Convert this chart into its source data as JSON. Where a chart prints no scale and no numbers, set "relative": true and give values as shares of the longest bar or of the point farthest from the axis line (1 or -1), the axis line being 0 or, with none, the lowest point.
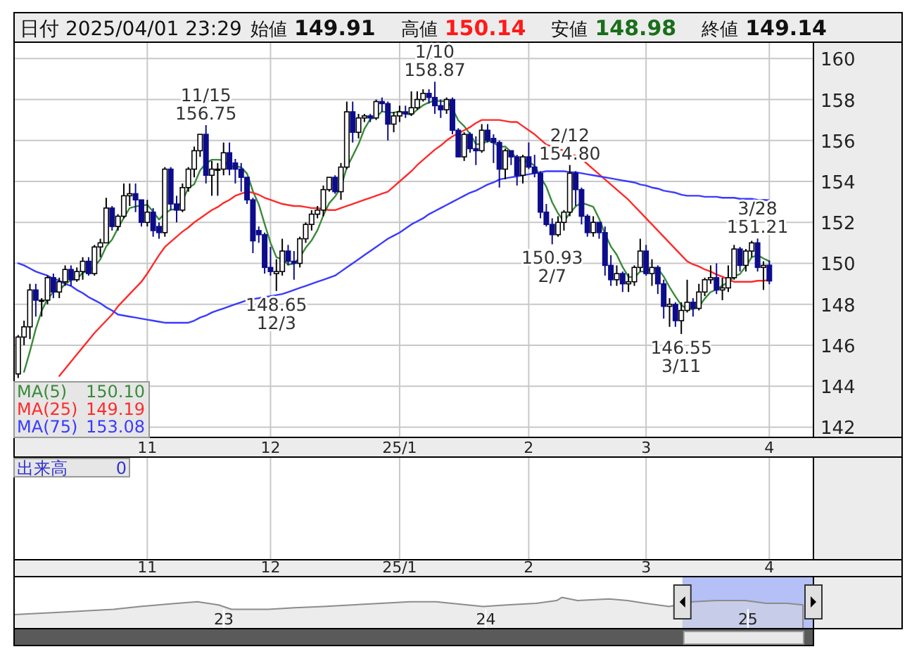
{
  "chart_data": [
    {
      "type": "candlestick",
      "title": "日付 2025/04/01 23:29",
      "categories": [
        null,
        null,
        null,
        null,
        null,
        null,
        null,
        null,
        null,
        null,
        null,
        null,
        null,
        null,
        null,
        null,
        null,
        null,
        null,
        null,
        null,
        null,
        "11",
        null,
        null,
        null,
        null,
        null,
        null,
        null,
        null,
        null,
        null,
        null,
        null,
        null,
        null,
        null,
        null,
        null,
        null,
        null,
        null,
        "12",
        null,
        null,
        null,
        null,
        null,
        null,
        null,
        null,
        null,
        null,
        null,
        null,
        null,
        null,
        null,
        null,
        null,
        null,
        null,
        null,
        null,
        "25/1",
        null,
        null,
        null,
        null,
        null,
        null,
        null,
        null,
        null,
        null,
        null,
        null,
        null,
        null,
        null,
        null,
        null,
        null,
        null,
        null,
        null,
        "2",
        null,
        null,
        null,
        null,
        null,
        null,
        null,
        null,
        null,
        null,
        null,
        null,
        null,
        null,
        null,
        null,
        null,
        null,
        null,
        "3",
        null,
        null,
        null,
        null,
        null,
        null,
        null,
        null,
        null,
        null,
        null,
        null,
        null,
        null,
        null,
        null,
        null,
        null,
        null,
        null,
        "4"
      ],
      "ohlc": [
        [
          144.6,
          146.5,
          144.4,
          146.4
        ],
        [
          146.4,
          147.2,
          146.0,
          146.9
        ],
        [
          146.9,
          149.0,
          146.3,
          148.7
        ],
        [
          148.7,
          149.0,
          147.4,
          148.2
        ],
        [
          148.2,
          148.3,
          147.4,
          148.2
        ],
        [
          148.2,
          149.4,
          148.0,
          149.3
        ],
        [
          149.3,
          149.5,
          148.3,
          148.6
        ],
        [
          148.6,
          149.3,
          148.3,
          149.1
        ],
        [
          149.1,
          149.9,
          148.9,
          149.7
        ],
        [
          149.7,
          149.9,
          148.9,
          149.2
        ],
        [
          149.2,
          149.8,
          149.1,
          149.6
        ],
        [
          149.6,
          150.3,
          149.2,
          150.1
        ],
        [
          150.1,
          150.3,
          149.4,
          149.5
        ],
        [
          149.5,
          150.9,
          149.4,
          150.8
        ],
        [
          150.8,
          151.2,
          150.3,
          151.0
        ],
        [
          151.0,
          153.2,
          151.0,
          152.7
        ],
        [
          152.7,
          152.8,
          151.6,
          151.8
        ],
        [
          151.8,
          152.4,
          151.6,
          152.3
        ],
        [
          152.3,
          153.9,
          152.2,
          153.3
        ],
        [
          153.3,
          153.9,
          152.8,
          153.4
        ],
        [
          153.4,
          153.9,
          152.5,
          153.1
        ],
        [
          153.1,
          153.1,
          151.8,
          152.0
        ],
        [
          152.0,
          153.1,
          151.8,
          152.5
        ],
        [
          152.5,
          152.7,
          151.3,
          151.6
        ],
        [
          151.8,
          152.0,
          151.2,
          151.5
        ],
        [
          151.5,
          154.7,
          151.3,
          154.6
        ],
        [
          154.6,
          154.7,
          152.6,
          152.9
        ],
        [
          152.9,
          153.3,
          152.0,
          152.6
        ],
        [
          152.6,
          153.9,
          152.5,
          153.7
        ],
        [
          153.7,
          154.7,
          153.5,
          154.6
        ],
        [
          154.6,
          155.7,
          154.2,
          155.5
        ],
        [
          155.5,
          156.3,
          155.2,
          156.3
        ],
        [
          156.3,
          156.75,
          153.9,
          154.3
        ],
        [
          154.3,
          155.0,
          153.3,
          154.6
        ],
        [
          154.6,
          154.9,
          153.3,
          154.6
        ],
        [
          154.6,
          155.9,
          154.3,
          155.4
        ],
        [
          155.4,
          155.9,
          154.3,
          154.6
        ],
        [
          154.9,
          155.1,
          153.9,
          154.6
        ],
        [
          154.6,
          154.9,
          153.5,
          154.2
        ],
        [
          154.2,
          154.2,
          152.9,
          153.1
        ],
        [
          153.1,
          153.2,
          150.5,
          151.1
        ],
        [
          151.6,
          151.8,
          151.0,
          151.4
        ],
        [
          151.4,
          151.5,
          149.5,
          149.8
        ],
        [
          149.8,
          150.8,
          149.4,
          149.6
        ],
        [
          149.5,
          150.2,
          148.65,
          149.6
        ],
        [
          149.6,
          151.2,
          149.4,
          150.6
        ],
        [
          150.6,
          150.9,
          149.9,
          150.1
        ],
        [
          150.1,
          150.6,
          149.2,
          150.0
        ],
        [
          150.0,
          151.3,
          149.8,
          151.2
        ],
        [
          151.2,
          152.0,
          151.0,
          151.9
        ],
        [
          151.9,
          152.6,
          151.6,
          152.4
        ],
        [
          152.4,
          152.8,
          152.2,
          152.6
        ],
        [
          152.6,
          153.8,
          152.3,
          153.6
        ],
        [
          153.6,
          154.2,
          153.5,
          154.2
        ],
        [
          154.2,
          154.3,
          153.4,
          153.5
        ],
        [
          153.5,
          154.9,
          153.1,
          154.7
        ],
        [
          154.7,
          157.9,
          154.6,
          157.4
        ],
        [
          157.4,
          157.9,
          155.9,
          156.4
        ],
        [
          156.4,
          157.3,
          156.1,
          157.1
        ],
        [
          157.1,
          157.3,
          156.9,
          157.2
        ],
        [
          157.2,
          157.3,
          156.9,
          157.1
        ],
        [
          157.1,
          158.0,
          157.0,
          157.9
        ],
        [
          157.9,
          158.1,
          157.4,
          157.8
        ],
        [
          157.8,
          157.9,
          156.0,
          156.8
        ],
        [
          156.8,
          157.4,
          156.4,
          157.2
        ],
        [
          157.2,
          157.7,
          156.9,
          157.4
        ],
        [
          157.4,
          157.7,
          157.1,
          157.3
        ],
        [
          157.3,
          158.4,
          157.2,
          157.6
        ],
        [
          157.6,
          158.4,
          157.5,
          158.0
        ],
        [
          158.0,
          158.5,
          157.9,
          158.3
        ],
        [
          158.3,
          158.5,
          157.8,
          158.1
        ],
        [
          158.1,
          158.87,
          157.3,
          157.7
        ],
        [
          157.7,
          158.0,
          157.1,
          157.5
        ],
        [
          157.5,
          158.1,
          157.3,
          158.0
        ],
        [
          158.0,
          158.1,
          156.3,
          156.5
        ],
        [
          156.5,
          156.6,
          155.2,
          155.2
        ],
        [
          155.2,
          156.4,
          155.0,
          156.3
        ],
        [
          156.3,
          156.4,
          155.4,
          155.6
        ],
        [
          155.6,
          156.2,
          154.8,
          155.5
        ],
        [
          155.5,
          156.8,
          155.4,
          156.5
        ],
        [
          156.5,
          156.8,
          155.9,
          156.0
        ],
        [
          156.1,
          156.3,
          154.9,
          155.9
        ],
        [
          155.9,
          156.0,
          153.7,
          154.6
        ],
        [
          154.6,
          155.6,
          154.1,
          155.5
        ],
        [
          155.5,
          155.5,
          154.8,
          155.2
        ],
        [
          155.2,
          155.3,
          153.8,
          154.3
        ],
        [
          154.3,
          155.3,
          153.9,
          155.2
        ],
        [
          155.2,
          155.9,
          154.6,
          154.7
        ],
        [
          154.7,
          155.3,
          154.2,
          154.4
        ],
        [
          154.4,
          154.5,
          152.2,
          152.5
        ],
        [
          152.5,
          152.9,
          151.8,
          151.9
        ],
        [
          151.9,
          152.2,
          150.93,
          151.4
        ],
        [
          151.4,
          152.3,
          151.3,
          152.0
        ],
        [
          152.0,
          152.6,
          151.6,
          152.5
        ],
        [
          152.5,
          154.8,
          152.3,
          154.4
        ],
        [
          154.4,
          154.5,
          152.8,
          153.6
        ],
        [
          153.6,
          153.7,
          151.9,
          152.3
        ],
        [
          152.3,
          152.4,
          151.3,
          151.5
        ],
        [
          151.5,
          152.3,
          151.3,
          152.0
        ],
        [
          152.0,
          152.0,
          151.2,
          151.5
        ],
        [
          151.5,
          151.8,
          149.4,
          149.9
        ],
        [
          149.9,
          150.4,
          148.9,
          149.2
        ],
        [
          149.2,
          149.9,
          148.9,
          149.5
        ],
        [
          149.5,
          149.6,
          148.6,
          149.0
        ],
        [
          149.0,
          149.5,
          148.6,
          149.1
        ],
        [
          149.1,
          149.9,
          148.9,
          149.8
        ],
        [
          149.8,
          151.2,
          149.6,
          150.6
        ],
        [
          150.6,
          150.9,
          149.4,
          149.5
        ],
        [
          149.5,
          150.2,
          148.9,
          149.8
        ],
        [
          149.8,
          149.9,
          148.5,
          149.0
        ],
        [
          149.0,
          149.2,
          147.3,
          147.9
        ],
        [
          147.9,
          148.3,
          146.9,
          148.0
        ],
        [
          148.0,
          148.1,
          146.9,
          147.2
        ],
        [
          147.2,
          148.1,
          146.55,
          147.7
        ],
        [
          147.7,
          149.2,
          147.6,
          148.1
        ],
        [
          148.1,
          148.3,
          147.4,
          147.8
        ],
        [
          147.8,
          149.0,
          147.7,
          148.6
        ],
        [
          148.6,
          149.3,
          148.4,
          149.2
        ],
        [
          149.2,
          149.9,
          149.0,
          149.3
        ],
        [
          149.3,
          150.0,
          148.5,
          148.7
        ],
        [
          148.7,
          149.3,
          148.2,
          148.8
        ],
        [
          148.8,
          149.9,
          148.6,
          149.3
        ],
        [
          149.3,
          150.9,
          149.2,
          150.7
        ],
        [
          150.7,
          150.8,
          149.6,
          149.9
        ],
        [
          149.9,
          150.7,
          149.6,
          150.6
        ],
        [
          150.6,
          151.1,
          150.3,
          151.0
        ],
        [
          151.0,
          151.21,
          149.6,
          149.8
        ],
        [
          149.8,
          150.1,
          148.7,
          149.9
        ],
        [
          149.91,
          150.14,
          148.98,
          149.14
        ]
      ],
      "series": [
        {
          "type": "line",
          "name": "MA(5)",
          "color": "#3a8a3a",
          "values": [
            null,
            144.7,
            145.7,
            146.8,
            147.68,
            148.26,
            148.6,
            148.68,
            148.98,
            149.18,
            149.24,
            149.54,
            149.62,
            149.84,
            150.2,
            150.82,
            151.16,
            151.72,
            152.22,
            152.7,
            152.78,
            152.82,
            152.86,
            152.52,
            152.14,
            152.44,
            152.62,
            152.64,
            153.06,
            153.68,
            153.86,
            154.54,
            154.88,
            155.06,
            155.06,
            155.04,
            154.7,
            154.76,
            154.68,
            154.38,
            153.52,
            152.88,
            151.92,
            151.0,
            150.3,
            150.2,
            149.94,
            149.98,
            150.3,
            150.76,
            151.12,
            151.62,
            152.34,
            152.94,
            153.26,
            153.72,
            154.68,
            155.24,
            155.82,
            156.56,
            157.04,
            157.14,
            157.42,
            157.36,
            157.36,
            157.42,
            157.3,
            157.26,
            157.5,
            157.72,
            157.86,
            157.94,
            157.92,
            157.92,
            157.56,
            156.98,
            156.7,
            156.32,
            155.82,
            155.82,
            155.98,
            155.9,
            155.7,
            155.7,
            155.44,
            155.1,
            154.96,
            154.98,
            154.76,
            154.22,
            153.74,
            152.98,
            152.44,
            152.06,
            152.44,
            152.78,
            152.96,
            152.86,
            152.76,
            152.18,
            151.44,
            150.82,
            150.42,
            149.82,
            149.34,
            149.32,
            149.6,
            149.6,
            149.76,
            149.74,
            149.36,
            148.84,
            148.38,
            147.96,
            147.78,
            147.76,
            147.88,
            148.28,
            148.6,
            148.72,
            148.92,
            149.06,
            149.36,
            149.48,
            149.86,
            150.3,
            150.4,
            150.24,
            150.1
          ]
        },
        {
          "type": "line",
          "name": "MA(25)",
          "color": "#ff2a2a",
          "values": [
            null,
            null,
            null,
            null,
            null,
            null,
            null,
            144.5,
            144.85,
            145.2,
            145.55,
            145.9,
            146.25,
            146.6,
            146.9,
            147.2,
            147.5,
            147.9,
            148.2,
            148.5,
            148.8,
            149.1,
            149.5,
            149.95,
            150.4,
            150.8,
            151.05,
            151.3,
            151.55,
            151.75,
            152.0,
            152.2,
            152.4,
            152.6,
            152.75,
            152.95,
            153.1,
            153.3,
            153.4,
            153.5,
            153.45,
            153.35,
            153.2,
            153.1,
            153.0,
            152.9,
            152.85,
            152.8,
            152.8,
            152.75,
            152.7,
            152.7,
            152.65,
            152.6,
            152.6,
            152.7,
            152.8,
            152.9,
            153.0,
            153.1,
            153.2,
            153.3,
            153.4,
            153.5,
            153.75,
            154.0,
            154.25,
            154.5,
            154.8,
            155.05,
            155.3,
            155.55,
            155.75,
            156.0,
            156.2,
            156.35,
            156.5,
            156.65,
            156.85,
            157.0,
            157.0,
            157.0,
            157.0,
            156.95,
            156.9,
            156.9,
            156.7,
            156.5,
            156.3,
            156.05,
            155.8,
            155.7,
            155.6,
            155.5,
            155.35,
            155.25,
            155.1,
            154.85,
            154.6,
            154.35,
            154.1,
            153.85,
            153.6,
            153.35,
            153.1,
            152.8,
            152.5,
            152.2,
            151.9,
            151.6,
            151.3,
            151.0,
            150.7,
            150.4,
            150.1,
            149.95,
            149.85,
            149.7,
            149.6,
            149.45,
            149.35,
            149.2,
            149.1,
            149.1,
            149.1,
            149.1,
            149.15,
            149.15,
            149.19
          ]
        },
        {
          "type": "line",
          "name": "MA(75)",
          "color": "#3a3aff",
          "values": [
            150.0,
            149.9,
            149.75,
            149.6,
            149.5,
            149.4,
            149.25,
            149.15,
            149.0,
            148.9,
            148.7,
            148.55,
            148.35,
            148.2,
            148.05,
            147.85,
            147.7,
            147.5,
            147.45,
            147.4,
            147.35,
            147.3,
            147.25,
            147.2,
            147.15,
            147.1,
            147.1,
            147.1,
            147.1,
            147.1,
            147.2,
            147.35,
            147.45,
            147.6,
            147.7,
            147.8,
            147.9,
            148.0,
            148.1,
            148.2,
            148.25,
            148.3,
            148.35,
            148.4,
            148.45,
            148.5,
            148.6,
            148.7,
            148.8,
            148.9,
            149.0,
            149.1,
            149.2,
            149.3,
            149.4,
            149.6,
            149.8,
            150.0,
            150.2,
            150.4,
            150.6,
            150.8,
            151.0,
            151.2,
            151.35,
            151.5,
            151.7,
            151.9,
            152.05,
            152.2,
            152.4,
            152.55,
            152.7,
            152.85,
            153.0,
            153.15,
            153.3,
            153.45,
            153.55,
            153.7,
            153.85,
            153.95,
            154.1,
            154.15,
            154.2,
            154.25,
            154.3,
            154.35,
            154.4,
            154.45,
            154.5,
            154.5,
            154.5,
            154.5,
            154.45,
            154.45,
            154.4,
            154.35,
            154.3,
            154.25,
            154.2,
            154.15,
            154.1,
            154.05,
            154.0,
            153.95,
            153.85,
            153.8,
            153.7,
            153.65,
            153.55,
            153.5,
            153.45,
            153.35,
            153.3,
            153.3,
            153.3,
            153.25,
            153.25,
            153.25,
            153.2,
            153.2,
            153.2,
            153.15,
            153.15,
            153.15,
            153.1,
            153.1,
            153.08
          ]
        }
      ],
      "ylim": [
        141.5,
        160.8
      ],
      "yticks": [
        142,
        144,
        146,
        148,
        150,
        152,
        154,
        156,
        158,
        160
      ],
      "grid": true,
      "legend": "bottom left",
      "annotations": [
        "始値",
        "149.91",
        "高値",
        "150.14",
        "安値",
        "148.98",
        "終値",
        "149.14",
        "150.10",
        "149.19",
        "153.08",
        {
          "text": "11/15",
          "y": 156.75
        },
        {
          "text": "156.75",
          "y": 156.75
        },
        {
          "text": "148.65",
          "y": 148.65
        },
        {
          "text": "12/3",
          "y": 148.65
        },
        {
          "text": "1/10",
          "y": 158.87
        },
        {
          "text": "158.87",
          "y": 158.87
        },
        {
          "text": "150.93",
          "y": 150.93
        },
        {
          "text": "2/7",
          "y": 150.93
        },
        {
          "text": "2/12",
          "y": 154.8
        },
        {
          "text": "154.80",
          "y": 154.8
        },
        {
          "text": "146.55",
          "y": 146.55
        },
        {
          "text": "3/11",
          "y": 146.55
        },
        {
          "text": "3/28",
          "y": 151.21
        },
        {
          "text": "151.21",
          "y": 151.21
        }
      ]
    },
    {
      "type": "other",
      "categories": [
        null,
        null,
        null,
        null,
        null,
        null,
        null,
        null,
        null,
        null,
        null,
        null,
        null,
        null,
        null,
        null,
        null,
        null,
        null,
        null,
        null,
        null,
        "11",
        null,
        null,
        null,
        null,
        null,
        null,
        null,
        null,
        null,
        null,
        null,
        null,
        null,
        null,
        null,
        null,
        null,
        null,
        null,
        null,
        "12",
        null,
        null,
        null,
        null,
        null,
        null,
        null,
        null,
        null,
        null,
        null,
        null,
        null,
        null,
        null,
        null,
        null,
        null,
        null,
        null,
        null,
        "25/1",
        null,
        null,
        null,
        null,
        null,
        null,
        null,
        null,
        null,
        null,
        null,
        null,
        null,
        null,
        null,
        null,
        null,
        null,
        null,
        null,
        null,
        "2",
        null,
        null,
        null,
        null,
        null,
        null,
        null,
        null,
        null,
        null,
        null,
        null,
        null,
        null,
        null,
        null,
        null,
        null,
        null,
        "3",
        null,
        null,
        null,
        null,
        null,
        null,
        null,
        null,
        null,
        null,
        null,
        null,
        null,
        null,
        null,
        null,
        null,
        null,
        null,
        null,
        "4"
      ],
      "annotations": [
        "出来高",
        "0"
      ]
    },
    {
      "type": "area",
      "relative": true,
      "tick_labels": "x",
      "color": "#8c8c8c",
      "x": [
        2022.2,
        2022.36,
        2022.47,
        2022.58,
        2022.68,
        2022.82,
        2022.9,
        2022.98,
        2023.03,
        2023.17,
        2023.27,
        2023.38,
        2023.49,
        2023.6,
        2023.71,
        2023.81,
        2023.93,
        2023.99,
        2024.08,
        2024.19,
        2024.27,
        2024.29,
        2024.35,
        2024.47,
        2024.54,
        2024.61,
        2024.7,
        2024.79,
        2024.88,
        2024.99,
        2025.07,
        2025.15,
        2025.21
      ],
      "values": [
        0.45,
        0.52,
        0.57,
        0.62,
        0.71,
        0.81,
        0.86,
        0.76,
        0.62,
        0.62,
        0.67,
        0.71,
        0.76,
        0.81,
        0.86,
        0.86,
        0.76,
        0.71,
        0.76,
        0.81,
        0.9,
        1,
        0.9,
        0.95,
        0.9,
        0.81,
        0.71,
        0.86,
        0.9,
        0.9,
        0.81,
        0.81,
        0.76
      ],
      "xlim": [
        2022.2,
        2025.25
      ],
      "xticks": [
        {
          "value": 2023,
          "label": "23"
        },
        {
          "value": 2024,
          "label": "24"
        },
        {
          "value": 2025,
          "label": "25"
        }
      ],
      "bands": [
        {
          "axis": "x",
          "from": 2024.75,
          "to": 2025.25,
          "color": "#b4c0f6"
        }
      ]
    }
  ]
}
